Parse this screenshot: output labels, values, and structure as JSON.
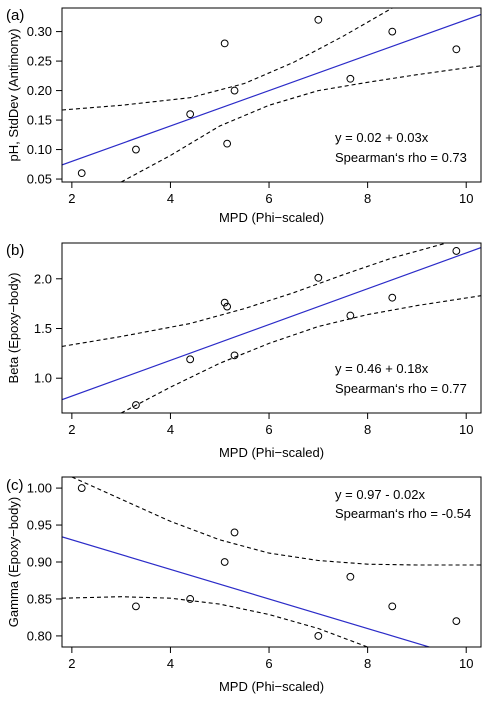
{
  "chart_data": [
    {
      "type": "scatter",
      "panel_label": "(a)",
      "xlabel": "MPD (Phi−scaled)",
      "ylabel": "pH, StdDev (Antimony)",
      "xlim": [
        1.8,
        10.3
      ],
      "ylim": [
        0.045,
        0.34
      ],
      "xticks": [
        2,
        4,
        6,
        8,
        10
      ],
      "yticks": [
        0.05,
        0.1,
        0.15,
        0.2,
        0.25,
        0.3
      ],
      "ytick_labels": [
        "0.05",
        "0.10",
        "0.15",
        "0.20",
        "0.25",
        "0.30"
      ],
      "points": {
        "x": [
          2.2,
          3.3,
          4.4,
          5.1,
          5.15,
          5.3,
          7.0,
          7.65,
          8.5,
          9.8
        ],
        "y": [
          0.06,
          0.1,
          0.16,
          0.28,
          0.11,
          0.2,
          0.32,
          0.22,
          0.3,
          0.27
        ]
      },
      "fit_line": {
        "intercept": 0.02,
        "slope": 0.03,
        "color": "#2b2bc8"
      },
      "confidence_band": {
        "upper": {
          "x": [
            1.8,
            3.0,
            4.4,
            5.5,
            6.5,
            7.5,
            8.5
          ],
          "y": [
            0.167,
            0.175,
            0.188,
            0.212,
            0.248,
            0.292,
            0.34
          ]
        },
        "lower": {
          "x": [
            3.0,
            4.0,
            5.0,
            6.0,
            7.0,
            8.0,
            9.0,
            10.3
          ],
          "y": [
            0.045,
            0.09,
            0.14,
            0.175,
            0.2,
            0.214,
            0.227,
            0.242
          ]
        }
      },
      "annotations": [
        "y = 0.02 + 0.03x",
        "Spearman‘s rho = 0.73"
      ],
      "annotation_position": "bottom-right",
      "grid": false
    },
    {
      "type": "scatter",
      "panel_label": "(b)",
      "xlabel": "MPD (Phi−scaled)",
      "ylabel": "Beta (Epoxy−body)",
      "xlim": [
        1.8,
        10.3
      ],
      "ylim": [
        0.65,
        2.36
      ],
      "xticks": [
        2,
        4,
        6,
        8,
        10
      ],
      "yticks": [
        1.0,
        1.5,
        2.0
      ],
      "ytick_labels": [
        "1.0",
        "1.5",
        "2.0"
      ],
      "points": {
        "x": [
          3.3,
          4.4,
          5.1,
          5.15,
          5.3,
          7.0,
          7.65,
          8.5,
          9.8
        ],
        "y": [
          0.73,
          1.19,
          1.76,
          1.72,
          1.23,
          2.01,
          1.63,
          1.81,
          2.28
        ]
      },
      "fit_line": {
        "intercept": 0.46,
        "slope": 0.18,
        "color": "#2b2bc8"
      },
      "confidence_band": {
        "upper": {
          "x": [
            1.8,
            3.0,
            4.4,
            5.5,
            6.5,
            7.5,
            8.5,
            9.6
          ],
          "y": [
            1.32,
            1.42,
            1.55,
            1.7,
            1.86,
            2.04,
            2.21,
            2.36
          ]
        },
        "lower": {
          "x": [
            3.0,
            4.0,
            5.0,
            6.0,
            7.0,
            8.0,
            9.0,
            10.3
          ],
          "y": [
            0.65,
            0.91,
            1.15,
            1.35,
            1.52,
            1.64,
            1.73,
            1.83
          ]
        }
      },
      "annotations": [
        "y = 0.46 + 0.18x",
        "Spearman‘s rho = 0.77"
      ],
      "annotation_position": "bottom-right",
      "grid": false
    },
    {
      "type": "scatter",
      "panel_label": "(c)",
      "xlabel": "MPD (Phi−scaled)",
      "ylabel": "Gamma (Epoxy−body)",
      "xlim": [
        1.8,
        10.3
      ],
      "ylim": [
        0.785,
        1.015
      ],
      "xticks": [
        2,
        4,
        6,
        8,
        10
      ],
      "yticks": [
        0.8,
        0.85,
        0.9,
        0.95,
        1.0
      ],
      "ytick_labels": [
        "0.80",
        "0.85",
        "0.90",
        "0.95",
        "1.00"
      ],
      "points": {
        "x": [
          2.2,
          3.3,
          4.4,
          5.1,
          5.3,
          7.0,
          7.65,
          8.5,
          9.8
        ],
        "y": [
          1.0,
          0.84,
          0.85,
          0.9,
          0.94,
          0.8,
          0.88,
          0.84,
          0.82
        ]
      },
      "fit_line": {
        "intercept": 0.97,
        "slope": -0.02,
        "color": "#2b2bc8"
      },
      "confidence_band": {
        "upper": {
          "x": [
            2.0,
            3.0,
            4.0,
            5.0,
            6.0,
            7.0,
            8.0,
            9.0,
            10.3
          ],
          "y": [
            1.015,
            0.985,
            0.955,
            0.93,
            0.912,
            0.902,
            0.897,
            0.896,
            0.896
          ]
        },
        "lower": {
          "x": [
            1.8,
            3.0,
            4.0,
            5.0,
            6.0,
            7.0,
            8.0
          ],
          "y": [
            0.851,
            0.853,
            0.851,
            0.843,
            0.829,
            0.81,
            0.785
          ]
        }
      },
      "annotations": [
        "y = 0.97 - 0.02x",
        "Spearman‘s rho = -0.54"
      ],
      "annotation_position": "top-right",
      "grid": false
    }
  ]
}
